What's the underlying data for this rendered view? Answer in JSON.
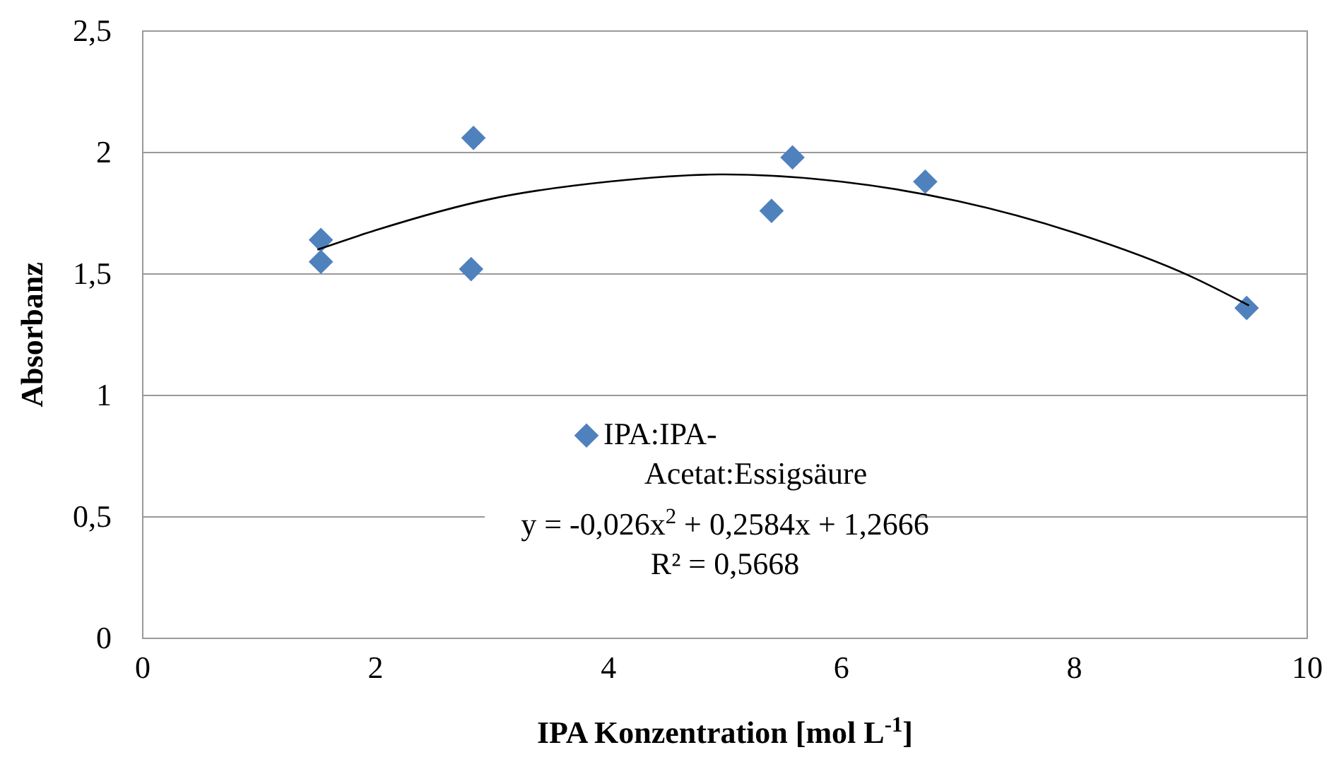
{
  "chart_data": {
    "type": "scatter",
    "xlabel": "IPA Konzentration [mol L$^{-1}$]",
    "ylabel": "Absorbanz",
    "xlim": [
      0,
      10
    ],
    "xticks": [
      0,
      2,
      4,
      6,
      8,
      10
    ],
    "ylim": [
      0,
      2.5
    ],
    "yticks": [
      0,
      {
        "value": 0.5,
        "label": "0,5"
      },
      1,
      {
        "value": 1.5,
        "label": "1,5"
      },
      2,
      {
        "value": 2.5,
        "label": "2,5"
      }
    ],
    "grid": "y",
    "legend": "bottom",
    "marker": "diamond",
    "series": [
      {
        "name": "IPA:IPA-Acetat:Essigsäure",
        "color": "#4f81bd",
        "x": [
          1.53,
          1.53,
          2.84,
          2.82,
          5.4,
          5.58,
          6.72,
          9.48
        ],
        "values": [
          1.64,
          1.55,
          2.06,
          1.52,
          1.76,
          1.98,
          1.88,
          1.36
        ]
      },
      {
        "type": "line",
        "color": "#000000",
        "marker": "none",
        "x": [
          1.5,
          2,
          3,
          4,
          5,
          6,
          7,
          8,
          9,
          9.5
        ],
        "values": [
          1.6,
          1.68,
          1.81,
          1.88,
          1.91,
          1.88,
          1.8,
          1.67,
          1.49,
          1.37
        ]
      }
    ],
    "annotations": [
      "y = -0,026x$^{2}$ + 0,2584x + 1,2666",
      "R² = 0,5668"
    ]
  }
}
